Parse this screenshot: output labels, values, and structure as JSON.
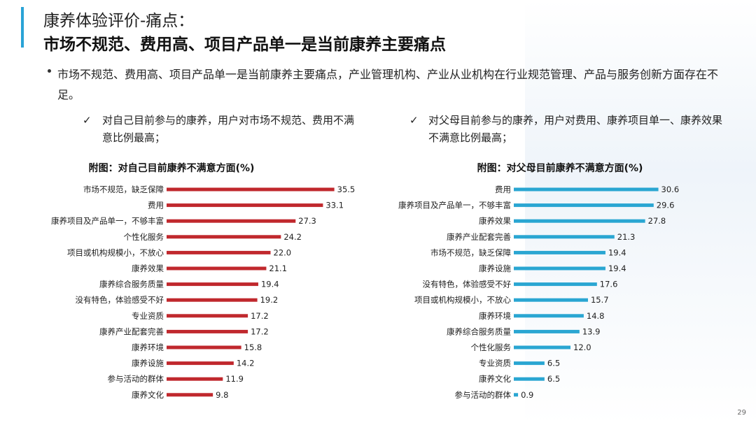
{
  "header": {
    "title_line1": "康养体验评价-痛点：",
    "title_line2": "市场不规范、费用高、项目产品单一是当前康养主要痛点"
  },
  "bullet": {
    "text": "市场不规范、费用高、项目产品单一是当前康养主要痛点，产业管理机构、产业从业机构在行业规范管理、产品与服务创新方面存在不足。"
  },
  "left_note": {
    "check": "✓",
    "text": "对自己目前参与的康养，用户对市场不规范、费用不满意比例最高；"
  },
  "right_note": {
    "check": "✓",
    "text": "对父母目前参与的康养，用户对费用、康养项目单一、康养效果不满意比例最高；"
  },
  "page_number": "29",
  "colors": {
    "accent": "#29a3d6",
    "left_bar": "#c0282d",
    "right_bar": "#2aa6d2"
  },
  "chart_data": [
    {
      "type": "bar",
      "orientation": "horizontal",
      "title": "附图：对自己目前康养不满意方面(%)",
      "categories": [
        "市场不规范，缺乏保障",
        "费用",
        "康养项目及产品单一，不够丰富",
        "个性化服务",
        "项目或机构规模小，不放心",
        "康养效果",
        "康养综合服务质量",
        "没有特色，体验感受不好",
        "专业资质",
        "康养产业配套完善",
        "康养环境",
        "康养设施",
        "参与活动的群体",
        "康养文化"
      ],
      "values": [
        35.5,
        33.1,
        27.3,
        24.2,
        22.0,
        21.1,
        19.4,
        19.2,
        17.2,
        17.2,
        15.8,
        14.2,
        11.9,
        9.8
      ],
      "labels": [
        "35.5",
        "33.1",
        "27.3",
        "24.2",
        "22.0",
        "21.1",
        "19.4",
        "19.2",
        "17.2",
        "17.2",
        "15.8",
        "14.2",
        "11.9",
        "9.8"
      ],
      "xlim": [
        0,
        36
      ],
      "color": "#c0282d"
    },
    {
      "type": "bar",
      "orientation": "horizontal",
      "title": "附图：对父母目前康养不满意方面(%)",
      "categories": [
        "费用",
        "康养项目及产品单一，不够丰富",
        "康养效果",
        "康养产业配套完善",
        "市场不规范，缺乏保障",
        "康养设施",
        "没有特色，体验感受不好",
        "项目或机构规模小，不放心",
        "康养环境",
        "康养综合服务质量",
        "个性化服务",
        "专业资质",
        "康养文化",
        "参与活动的群体"
      ],
      "values": [
        30.6,
        29.6,
        27.8,
        21.3,
        19.4,
        19.4,
        17.6,
        15.7,
        14.8,
        13.9,
        12.0,
        6.5,
        6.5,
        0.9
      ],
      "labels": [
        "30.6",
        "29.6",
        "27.8",
        "21.3",
        "19.4",
        "19.4",
        "17.6",
        "15.7",
        "14.8",
        "13.9",
        "12.0",
        "6.5",
        "6.5",
        "0.9"
      ],
      "xlim": [
        0,
        36
      ],
      "color": "#2aa6d2"
    }
  ]
}
